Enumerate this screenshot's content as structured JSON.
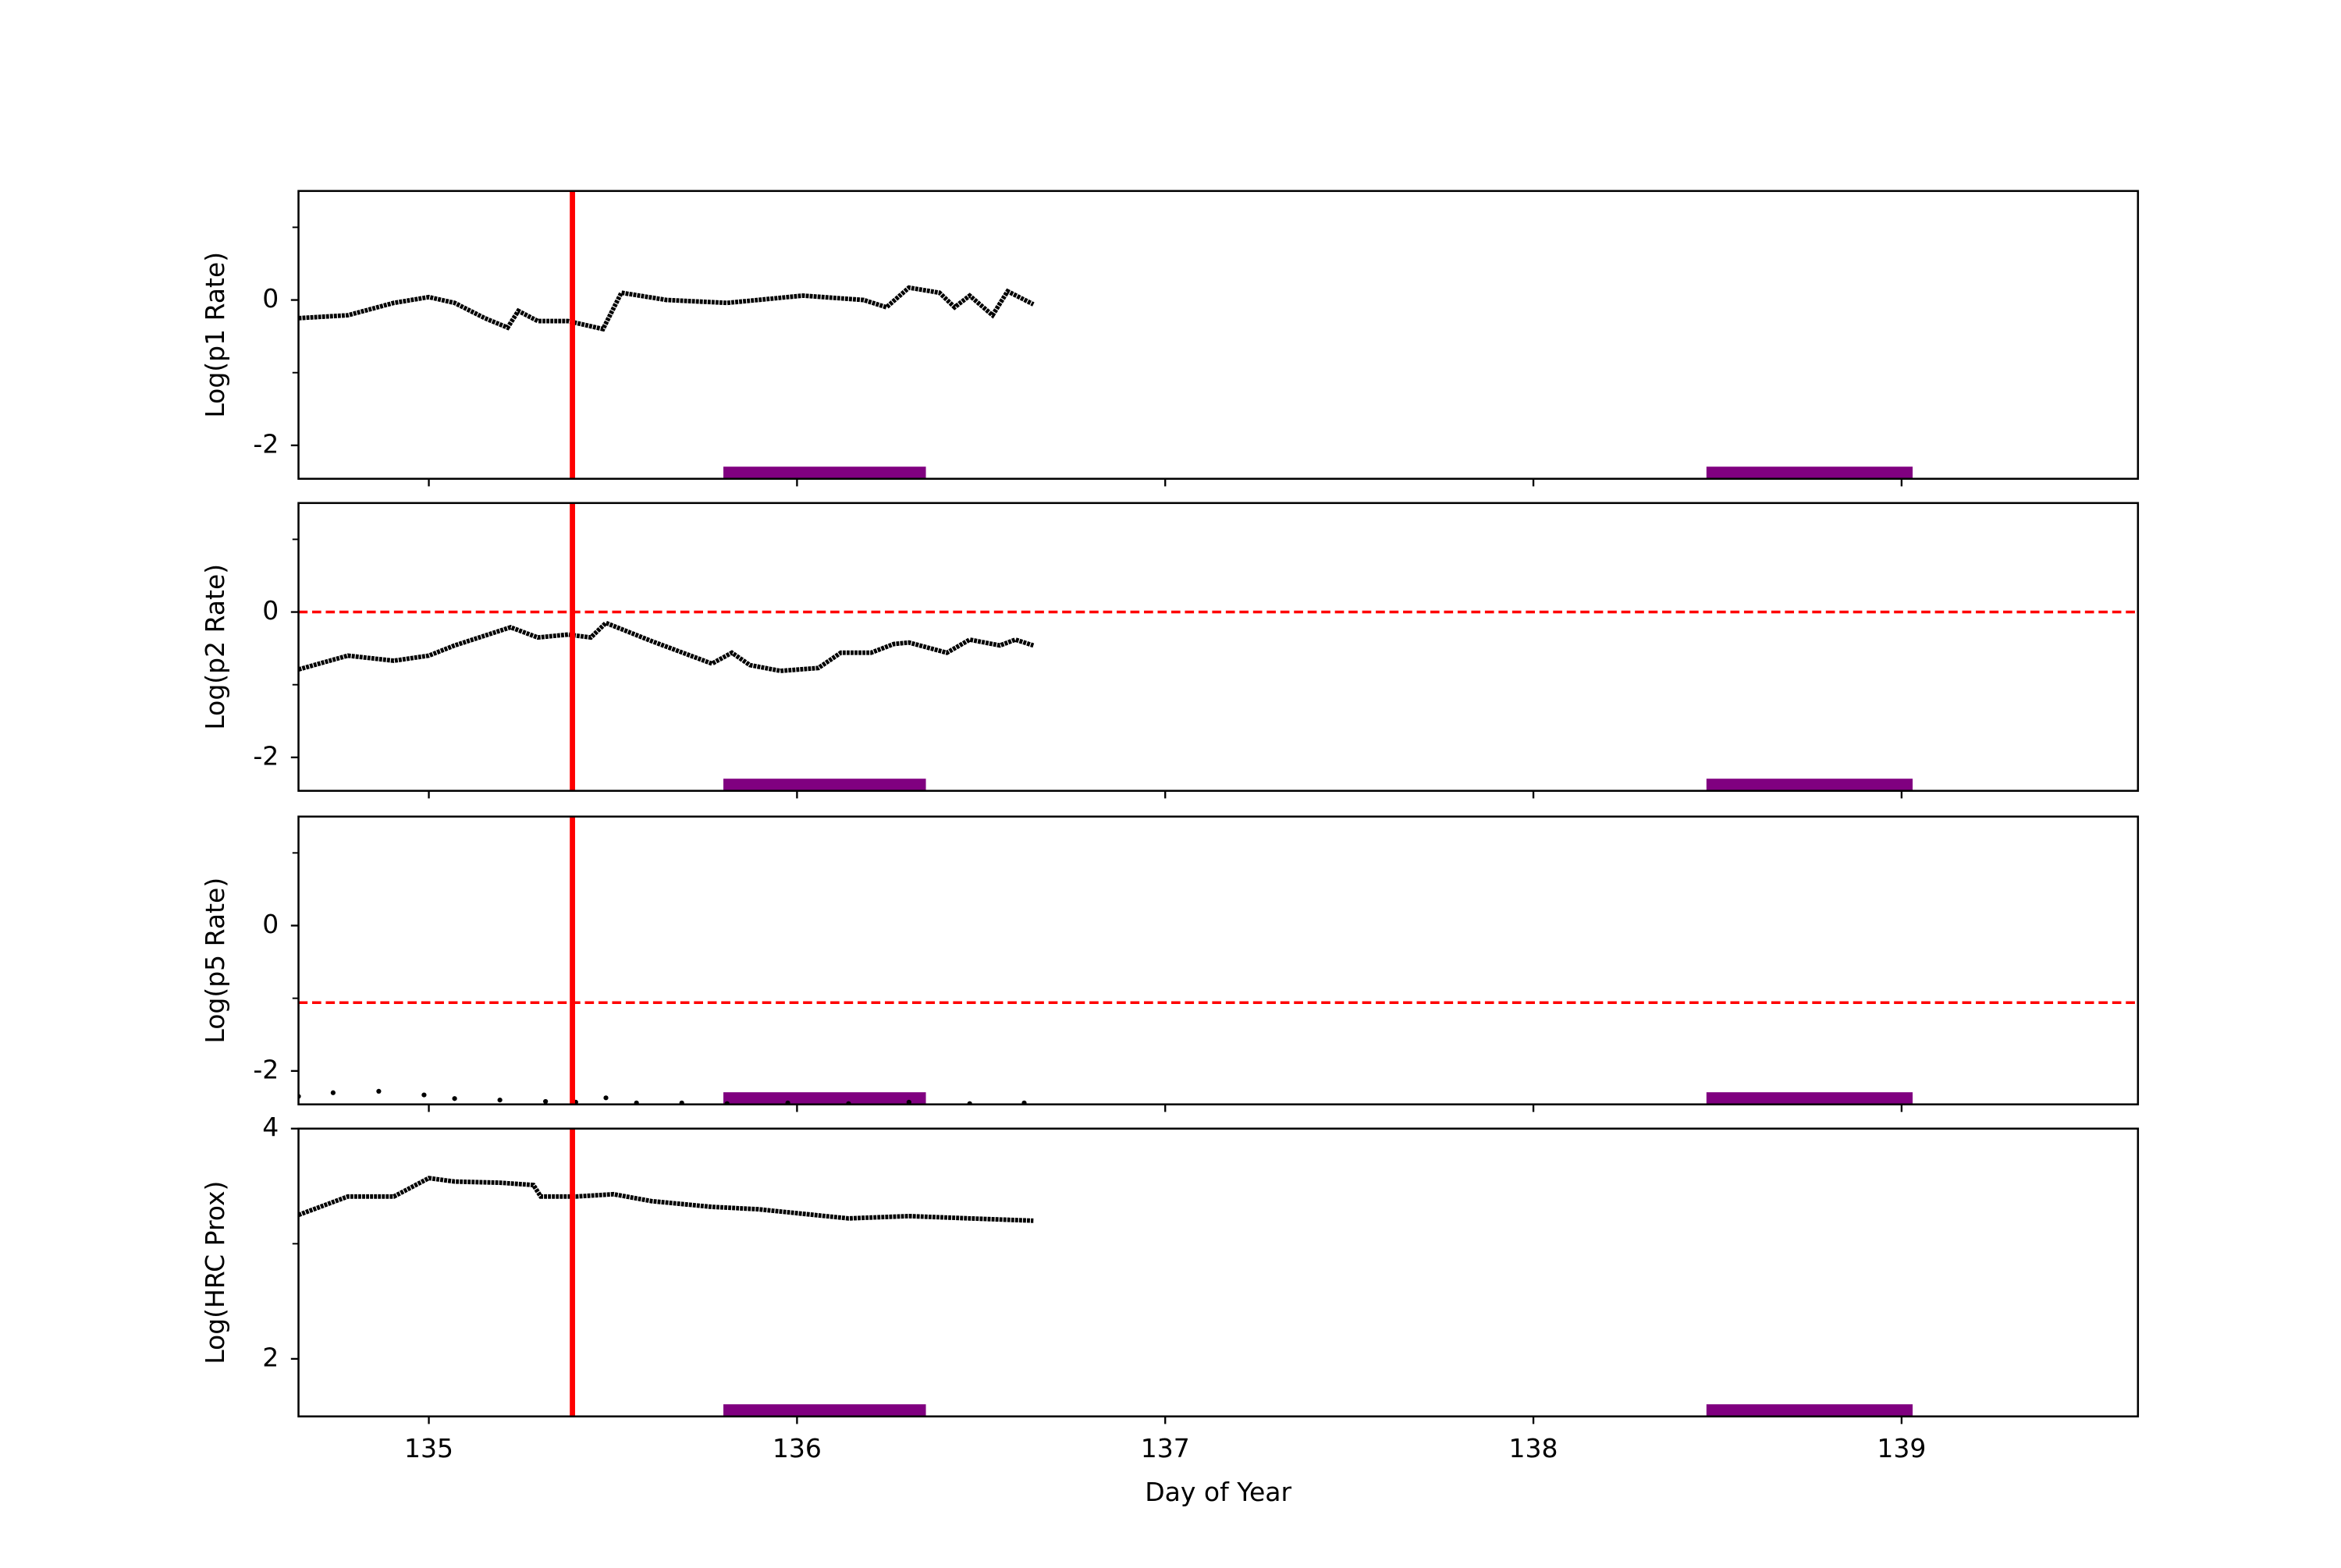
{
  "chart_data": [
    {
      "type": "line",
      "ylabel": "Log(p1 Rate)",
      "color": "#000000",
      "x": [
        134.646,
        134.78,
        134.905,
        135.0,
        135.07,
        135.152,
        135.214,
        135.243,
        135.296,
        135.378,
        135.473,
        135.523,
        135.646,
        135.81,
        135.893,
        136.016,
        136.181,
        136.243,
        136.304,
        136.387,
        136.428,
        136.469,
        136.531,
        136.572,
        136.642
      ],
      "values": [
        -0.25,
        -0.21,
        -0.04,
        0.04,
        -0.04,
        -0.25,
        -0.38,
        -0.15,
        -0.29,
        -0.29,
        -0.4,
        0.1,
        0.0,
        -0.04,
        0.0,
        0.06,
        0.0,
        -0.1,
        0.17,
        0.1,
        -0.1,
        0.06,
        -0.21,
        0.12,
        -0.06
      ],
      "xlim": [
        134.646,
        139.642
      ],
      "xticks": [
        135,
        136,
        137,
        138,
        139
      ],
      "ylim": [
        -2.46,
        1.5
      ],
      "yticks": [
        -2,
        0
      ],
      "yminorticks": [
        -1,
        1
      ],
      "vline": {
        "x": 135.39,
        "color": "#ff0000"
      },
      "spans": [
        {
          "start": 135.8,
          "end": 136.35
        },
        {
          "start": 138.47,
          "end": 139.03
        }
      ],
      "span_color": "#800080"
    },
    {
      "type": "line",
      "ylabel": "Log(p2 Rate)",
      "color": "#000000",
      "x": [
        134.646,
        134.78,
        134.905,
        135.0,
        135.07,
        135.222,
        135.296,
        135.378,
        135.44,
        135.481,
        135.605,
        135.769,
        135.823,
        135.872,
        135.955,
        136.058,
        136.119,
        136.201,
        136.263,
        136.304,
        136.407,
        136.469,
        136.551,
        136.593,
        136.642
      ],
      "values": [
        -0.79,
        -0.6,
        -0.67,
        -0.6,
        -0.46,
        -0.21,
        -0.35,
        -0.31,
        -0.35,
        -0.15,
        -0.4,
        -0.71,
        -0.56,
        -0.73,
        -0.81,
        -0.77,
        -0.56,
        -0.56,
        -0.44,
        -0.42,
        -0.56,
        -0.38,
        -0.46,
        -0.38,
        -0.46
      ],
      "xlim": [
        134.646,
        139.642
      ],
      "xticks": [
        135,
        136,
        137,
        138,
        139
      ],
      "ylim": [
        -2.46,
        1.5
      ],
      "yticks": [
        -2,
        0
      ],
      "yminorticks": [
        -1,
        1
      ],
      "vline": {
        "x": 135.39,
        "color": "#ff0000"
      },
      "hline": {
        "y": 0,
        "color": "#ff0000"
      },
      "spans": [
        {
          "start": 135.8,
          "end": 136.35
        },
        {
          "start": 138.47,
          "end": 139.03
        }
      ],
      "span_color": "#800080"
    },
    {
      "type": "scatter",
      "ylabel": "Log(p5 Rate)",
      "color": "#000000",
      "x": [
        134.646,
        134.74,
        134.864,
        134.987,
        135.07,
        135.193,
        135.317,
        135.399,
        135.481,
        135.564,
        135.687,
        135.81,
        135.975,
        136.14,
        136.304,
        136.469,
        136.617
      ],
      "values": [
        -2.35,
        -2.3,
        -2.28,
        -2.33,
        -2.38,
        -2.4,
        -2.42,
        -2.43,
        -2.37,
        -2.44,
        -2.44,
        -2.45,
        -2.44,
        -2.45,
        -2.43,
        -2.45,
        -2.44
      ],
      "xlim": [
        134.646,
        139.642
      ],
      "xticks": [
        135,
        136,
        137,
        138,
        139
      ],
      "ylim": [
        -2.46,
        1.5
      ],
      "yticks": [
        -2,
        0
      ],
      "yminorticks": [
        -1,
        1
      ],
      "vline": {
        "x": 135.39,
        "color": "#ff0000"
      },
      "hline": {
        "y": -1.06,
        "color": "#ff0000"
      },
      "spans": [
        {
          "start": 135.8,
          "end": 136.35
        },
        {
          "start": 138.47,
          "end": 139.03
        }
      ],
      "span_color": "#800080"
    },
    {
      "type": "line",
      "ylabel": "Log(HRC Prox)",
      "xlabel": "Day of Year",
      "color": "#000000",
      "x": [
        134.646,
        134.78,
        134.905,
        135.0,
        135.07,
        135.193,
        135.284,
        135.304,
        135.399,
        135.502,
        135.605,
        135.769,
        135.893,
        136.016,
        136.14,
        136.304,
        136.469,
        136.642
      ],
      "values": [
        3.25,
        3.41,
        3.41,
        3.57,
        3.54,
        3.53,
        3.51,
        3.41,
        3.41,
        3.43,
        3.37,
        3.32,
        3.3,
        3.26,
        3.22,
        3.24,
        3.22,
        3.2
      ],
      "xlim": [
        134.646,
        139.642
      ],
      "xticks": [
        135,
        136,
        137,
        138,
        139
      ],
      "ylim": [
        1.5,
        4
      ],
      "yticks": [
        2,
        4
      ],
      "yminorticks": [
        3
      ],
      "vline": {
        "x": 135.39,
        "color": "#ff0000"
      },
      "spans": [
        {
          "start": 135.8,
          "end": 136.35
        },
        {
          "start": 138.47,
          "end": 139.03
        }
      ],
      "span_color": "#800080"
    }
  ]
}
